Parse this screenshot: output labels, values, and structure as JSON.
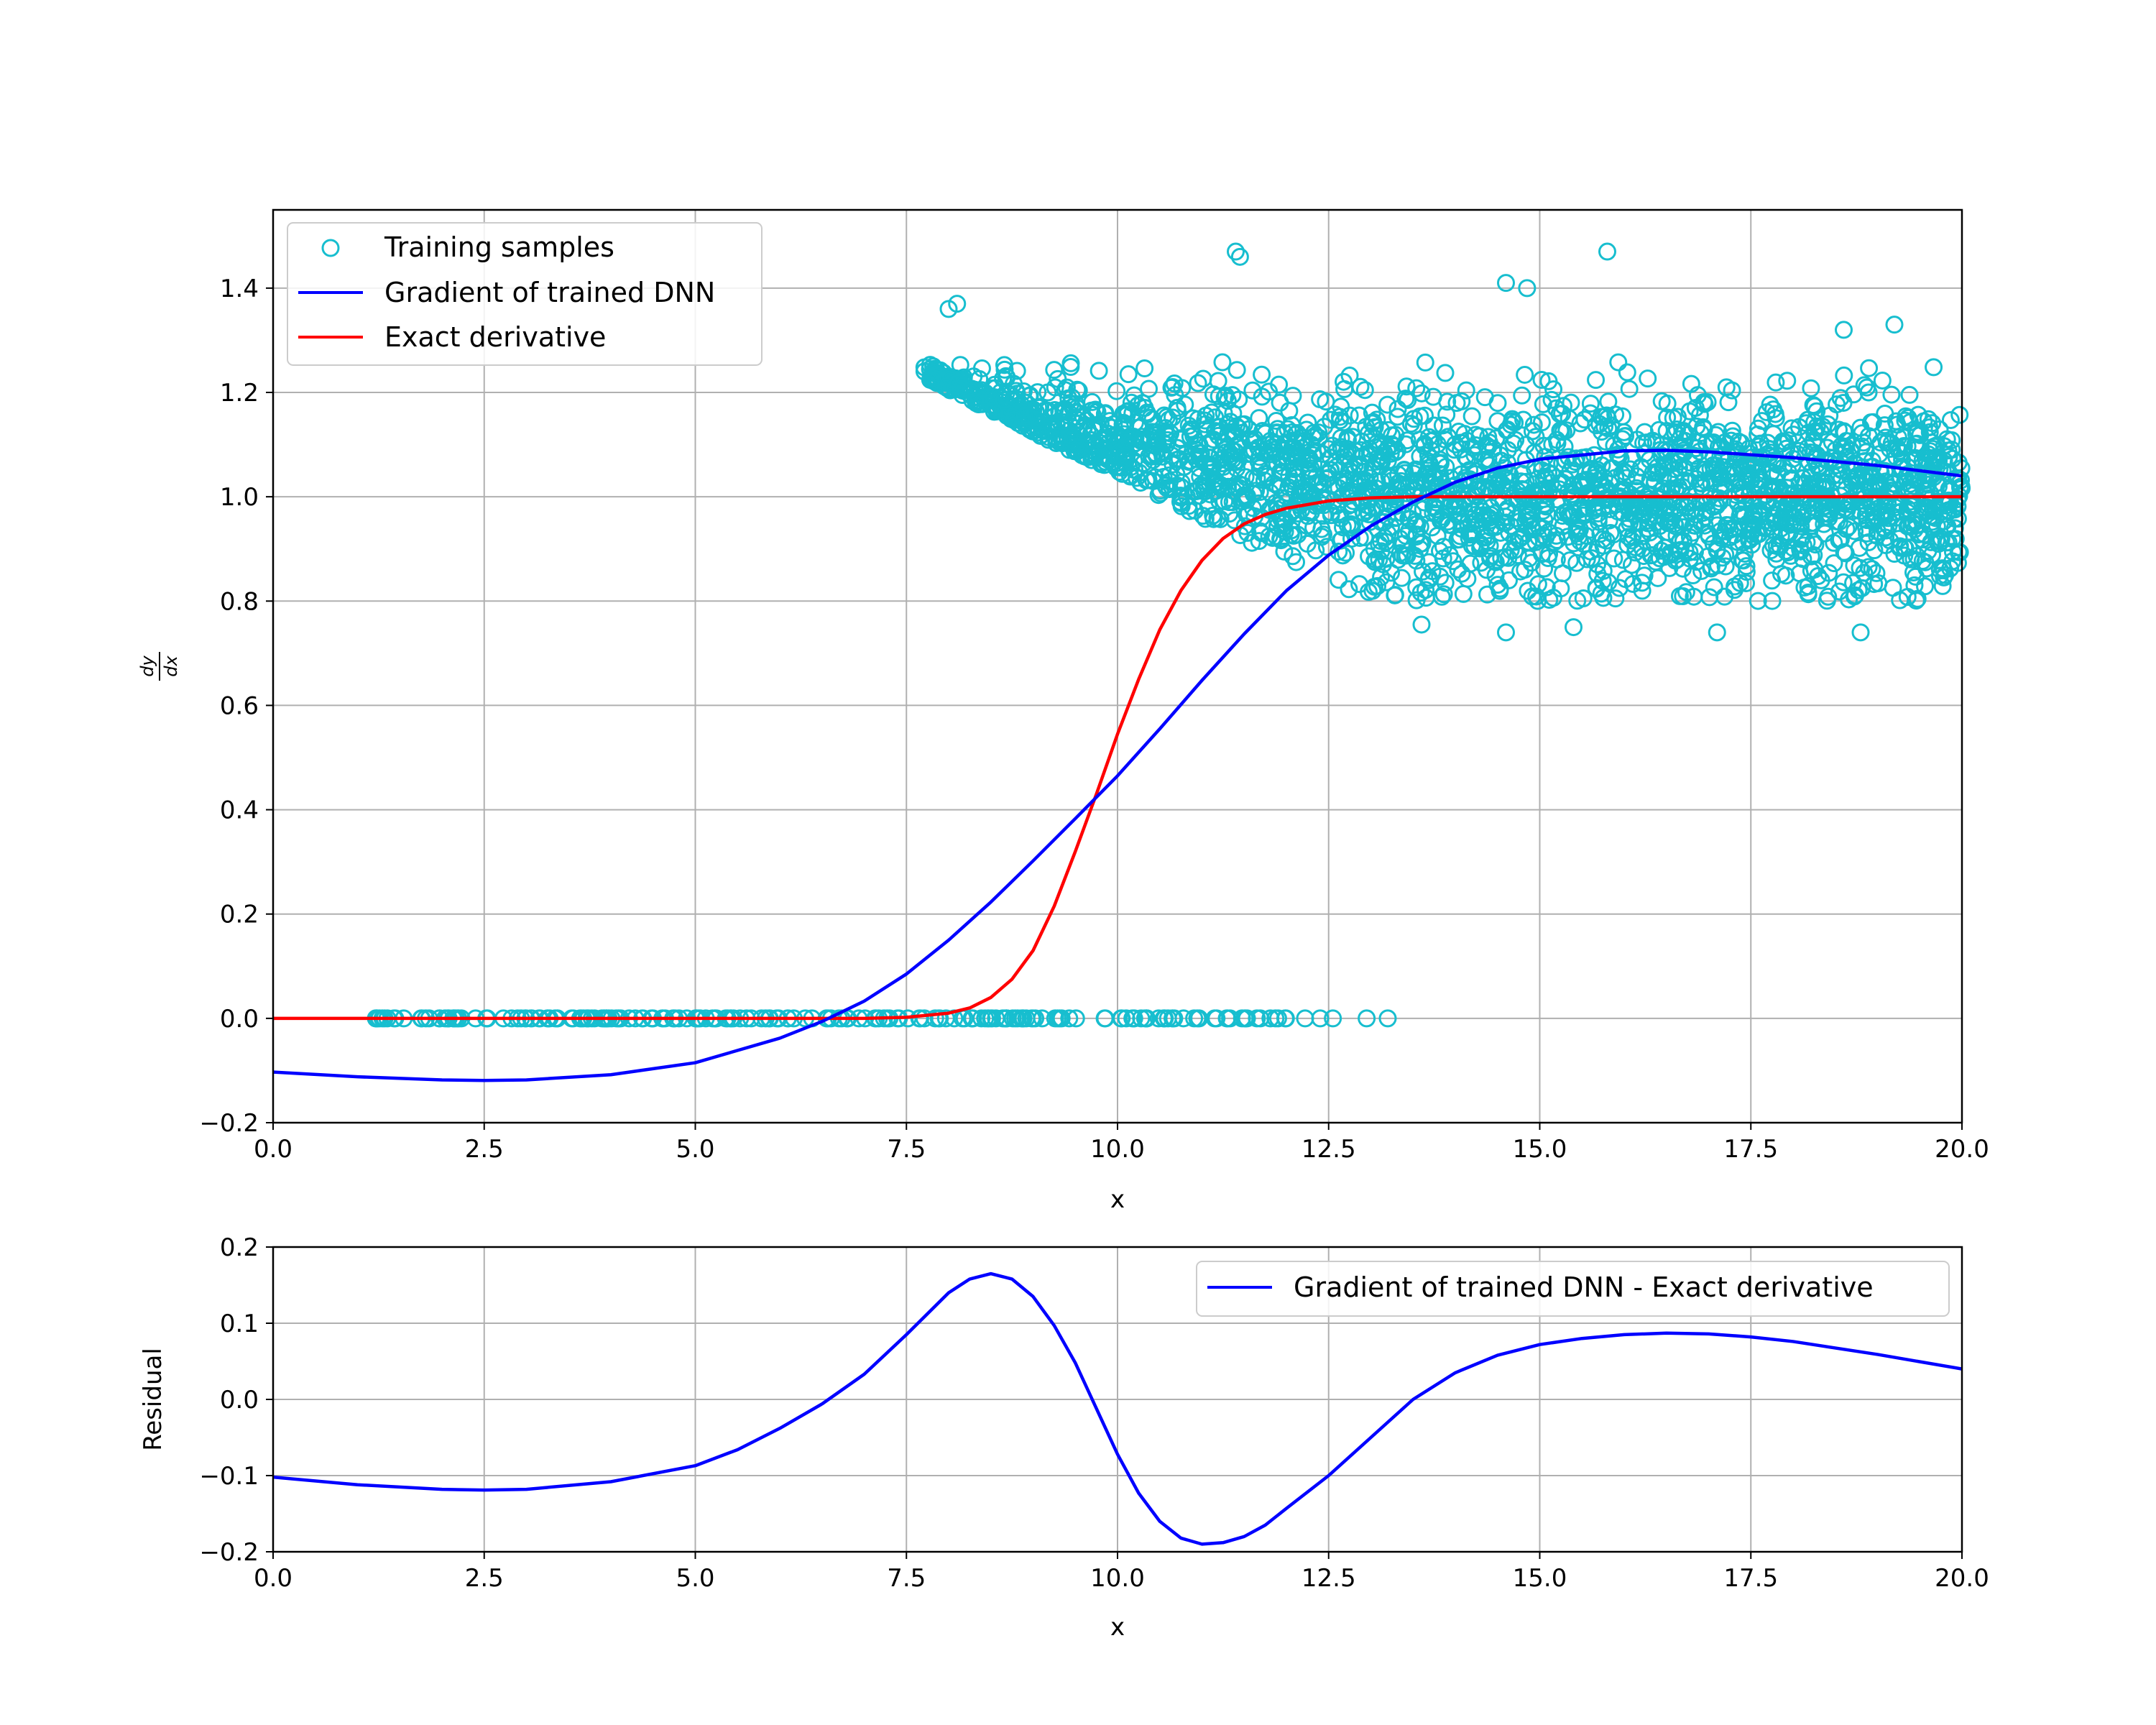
{
  "chart_data": [
    {
      "type": "scatter+line",
      "xlabel": "x",
      "ylabel": "dy/dx",
      "xlim": [
        0,
        20
      ],
      "ylim": [
        -0.2,
        1.55
      ],
      "xticks": [
        "0.0",
        "2.5",
        "5.0",
        "7.5",
        "10.0",
        "12.5",
        "15.0",
        "17.5",
        "20.0"
      ],
      "yticks": [
        "−0.2",
        "0.0",
        "0.2",
        "0.4",
        "0.6",
        "0.8",
        "1.0",
        "1.2",
        "1.4"
      ],
      "grid": true,
      "legend_position": "top-left",
      "legend": [
        "Training samples",
        "Gradient of trained DNN",
        "Exact derivative"
      ],
      "series": [
        {
          "name": "Training samples",
          "kind": "scatter",
          "color": "#17becf",
          "marker": "open-circle",
          "zero_group": {
            "x_range": [
              1.2,
              13.2
            ],
            "y": 0.0,
            "count": 220
          },
          "cloud_group": {
            "x_range": [
              7.7,
              20.0
            ],
            "y_center": 1.0,
            "spread_upper": 1.25,
            "spread_lower": 0.78,
            "count": 2600
          },
          "outliers": [
            {
              "x": 11.4,
              "y": 1.47
            },
            {
              "x": 11.45,
              "y": 1.46
            },
            {
              "x": 15.8,
              "y": 1.47
            },
            {
              "x": 14.6,
              "y": 1.41
            },
            {
              "x": 14.85,
              "y": 1.4
            },
            {
              "x": 8.0,
              "y": 1.36
            },
            {
              "x": 8.1,
              "y": 1.37
            },
            {
              "x": 19.2,
              "y": 1.33
            },
            {
              "x": 18.6,
              "y": 1.32
            },
            {
              "x": 14.6,
              "y": 0.74
            },
            {
              "x": 18.8,
              "y": 0.74
            },
            {
              "x": 17.1,
              "y": 0.74
            },
            {
              "x": 13.6,
              "y": 0.755
            },
            {
              "x": 15.4,
              "y": 0.75
            }
          ]
        },
        {
          "name": "Gradient of trained DNN",
          "kind": "line",
          "color": "#0000ff",
          "x": [
            0,
            1,
            2,
            2.5,
            3,
            4,
            5,
            6,
            6.5,
            7,
            7.5,
            8,
            8.5,
            9,
            9.5,
            10,
            10.5,
            11,
            11.5,
            12,
            12.5,
            13,
            13.5,
            14,
            14.5,
            15,
            16,
            16.5,
            17,
            18,
            19,
            20
          ],
          "y": [
            -0.103,
            -0.112,
            -0.118,
            -0.119,
            -0.118,
            -0.108,
            -0.085,
            -0.038,
            -0.006,
            0.033,
            0.085,
            0.15,
            0.223,
            0.302,
            0.383,
            0.465,
            0.555,
            0.648,
            0.737,
            0.82,
            0.888,
            0.944,
            0.99,
            1.028,
            1.055,
            1.072,
            1.088,
            1.089,
            1.086,
            1.075,
            1.06,
            1.04
          ]
        },
        {
          "name": "Exact derivative",
          "kind": "line",
          "color": "#ff0000",
          "x": [
            0,
            7,
            7.5,
            8,
            8.25,
            8.5,
            8.75,
            9,
            9.25,
            9.5,
            9.75,
            10,
            10.25,
            10.5,
            10.75,
            11,
            11.25,
            11.5,
            11.75,
            12,
            12.5,
            13,
            13.5,
            14,
            20
          ],
          "y": [
            0,
            0.0,
            0.002,
            0.01,
            0.02,
            0.04,
            0.075,
            0.13,
            0.215,
            0.32,
            0.43,
            0.545,
            0.65,
            0.745,
            0.82,
            0.878,
            0.92,
            0.948,
            0.966,
            0.978,
            0.992,
            0.998,
            1.0,
            1.0,
            1.0
          ]
        }
      ]
    },
    {
      "type": "line",
      "xlabel": "x",
      "ylabel": "Residual",
      "xlim": [
        0,
        20
      ],
      "ylim": [
        -0.2,
        0.2
      ],
      "xticks": [
        "0.0",
        "2.5",
        "5.0",
        "7.5",
        "10.0",
        "12.5",
        "15.0",
        "17.5",
        "20.0"
      ],
      "yticks": [
        "−0.2",
        "−0.1",
        "0.0",
        "0.1",
        "0.2"
      ],
      "grid": true,
      "legend_position": "top-right",
      "legend": [
        "Gradient of trained DNN - Exact derivative"
      ],
      "series": [
        {
          "name": "Gradient of trained DNN - Exact derivative",
          "color": "#0000ff",
          "x": [
            0,
            1,
            2,
            2.5,
            3,
            4,
            5,
            5.5,
            6,
            6.5,
            7,
            7.5,
            8,
            8.25,
            8.5,
            8.75,
            9,
            9.25,
            9.5,
            9.75,
            10,
            10.25,
            10.5,
            10.75,
            11,
            11.25,
            11.5,
            11.75,
            12,
            12.5,
            13,
            13.5,
            14,
            14.5,
            15,
            15.5,
            16,
            16.5,
            17,
            17.5,
            18,
            19,
            20
          ],
          "y": [
            -0.102,
            -0.112,
            -0.118,
            -0.119,
            -0.118,
            -0.108,
            -0.087,
            -0.066,
            -0.038,
            -0.006,
            0.033,
            0.085,
            0.14,
            0.158,
            0.165,
            0.158,
            0.135,
            0.097,
            0.048,
            -0.012,
            -0.072,
            -0.123,
            -0.16,
            -0.182,
            -0.19,
            -0.188,
            -0.18,
            -0.165,
            -0.143,
            -0.1,
            -0.05,
            0.0,
            0.035,
            0.058,
            0.072,
            0.08,
            0.085,
            0.087,
            0.086,
            0.082,
            0.076,
            0.059,
            0.04
          ]
        }
      ]
    }
  ]
}
